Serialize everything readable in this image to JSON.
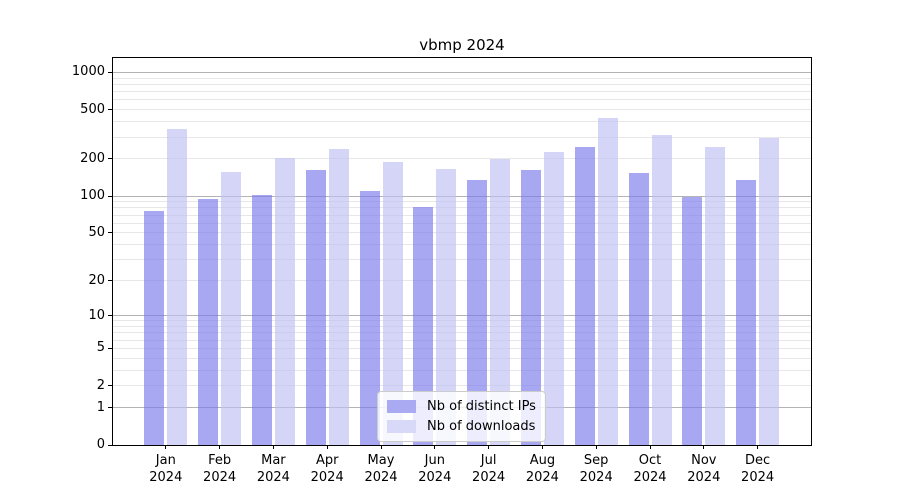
{
  "title": "vbmp 2024",
  "chart_data": {
    "type": "bar",
    "title": "vbmp 2024",
    "categories": [
      "Jan 2024",
      "Feb 2024",
      "Mar 2024",
      "Apr 2024",
      "May 2024",
      "Jun 2024",
      "Jul 2024",
      "Aug 2024",
      "Sep 2024",
      "Oct 2024",
      "Nov 2024",
      "Dec 2024"
    ],
    "series": [
      {
        "name": "Nb of distinct IPs",
        "values": [
          76,
          95,
          103,
          163,
          111,
          82,
          135,
          164,
          252,
          154,
          98,
          135
        ]
      },
      {
        "name": "Nb of downloads",
        "values": [
          350,
          158,
          205,
          240,
          190,
          166,
          200,
          228,
          425,
          315,
          248,
          295
        ]
      }
    ],
    "xlabel": "",
    "ylabel": "",
    "yscale": "log(1+v)",
    "yticks": [
      1000,
      500,
      200,
      100,
      50,
      20,
      10,
      5,
      2,
      1,
      0
    ],
    "ylim": [
      0,
      1300
    ],
    "grid": true,
    "legend_position": "lower-center"
  },
  "colors": {
    "bar_ips": "rgba(120,120,235,0.65)",
    "bar_downloads": "rgba(190,190,245,0.65)",
    "legend_swatch_ips": "#aaaaf2",
    "legend_swatch_downloads": "#d8d8f8",
    "grid_major": "#b4b4b4",
    "grid_minor": "#e7e7e7",
    "axis": "#000000"
  }
}
